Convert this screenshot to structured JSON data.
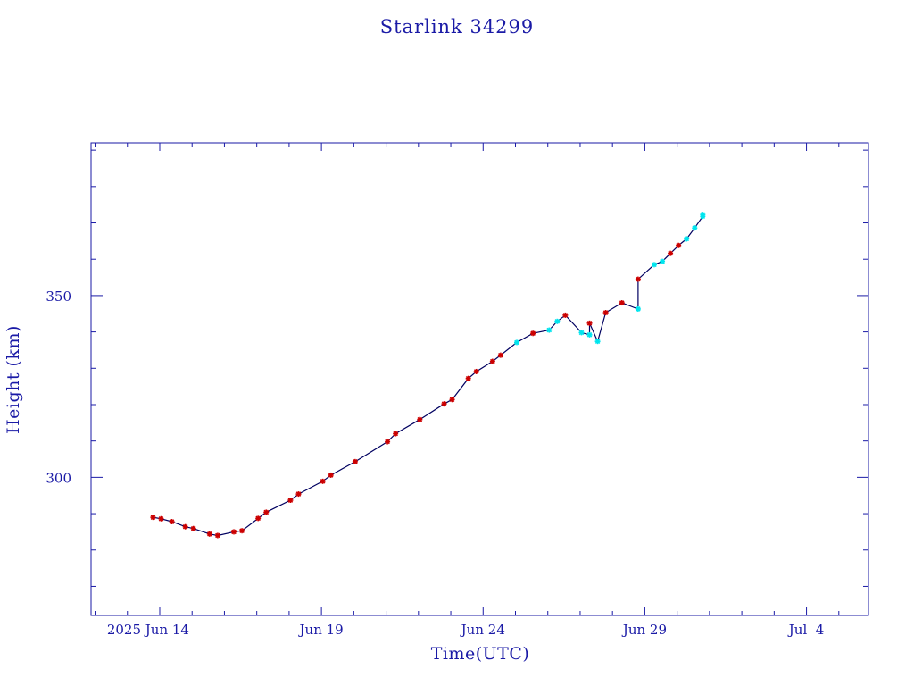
{
  "chart_data": {
    "type": "line",
    "title": "Starlink 34299",
    "xlabel": "Time(UTC)",
    "ylabel": "Height (km)",
    "x_tick_labels": [
      "2025 Jun 14",
      "Jun 19",
      "Jun 24",
      "Jun 29",
      "Jul  4"
    ],
    "x_tick_dates": [
      "2025-06-14",
      "2025-06-19",
      "2025-06-24",
      "2025-06-29",
      "2025-07-04"
    ],
    "y_tick_labels": [
      "300",
      "350"
    ],
    "y_tick_values": [
      300,
      350
    ],
    "xlim": [
      "2025-06-11 21:00",
      "2025-07-05 22:00"
    ],
    "ylim": [
      262,
      392
    ],
    "grid": false,
    "colors": {
      "frame": "#1a1aa6",
      "line": "#000060",
      "marker_a": "#cc0000",
      "marker_b": "#00e5ee"
    },
    "series": [
      {
        "marker": "red-star",
        "points": [
          [
            "2025-06-13 19:00",
            289.0
          ],
          [
            "2025-06-14 01:00",
            288.6
          ],
          [
            "2025-06-14 09:00",
            287.8
          ],
          [
            "2025-06-14 19:00",
            286.4
          ],
          [
            "2025-06-15 01:00",
            285.9
          ],
          [
            "2025-06-15 13:00",
            284.4
          ],
          [
            "2025-06-15 19:00",
            284.0
          ],
          [
            "2025-06-16 07:00",
            285.0
          ],
          [
            "2025-06-16 13:00",
            285.3
          ],
          [
            "2025-06-17 01:00",
            288.7
          ],
          [
            "2025-06-17 07:00",
            290.4
          ],
          [
            "2025-06-18 01:00",
            293.7
          ],
          [
            "2025-06-18 07:00",
            295.4
          ],
          [
            "2025-06-19 01:00",
            298.9
          ],
          [
            "2025-06-19 07:00",
            300.6
          ],
          [
            "2025-06-20 01:00",
            304.3
          ],
          [
            "2025-06-21 01:00",
            309.8
          ],
          [
            "2025-06-21 07:00",
            312.0
          ],
          [
            "2025-06-22 01:00",
            315.9
          ],
          [
            "2025-06-22 19:00",
            320.2
          ],
          [
            "2025-06-23 01:00",
            321.4
          ],
          [
            "2025-06-23 13:00",
            327.2
          ],
          [
            "2025-06-23 19:00",
            329.1
          ],
          [
            "2025-06-24 07:00",
            331.9
          ],
          [
            "2025-06-24 13:00",
            333.6
          ],
          [
            "2025-06-25 13:00",
            339.6
          ],
          [
            "2025-06-26 13:00",
            344.6
          ],
          [
            "2025-06-27 07:00",
            342.4
          ],
          [
            "2025-06-27 19:00",
            345.3
          ],
          [
            "2025-06-28 07:00",
            348.0
          ],
          [
            "2025-06-28 19:00",
            354.5
          ],
          [
            "2025-06-29 19:00",
            361.6
          ],
          [
            "2025-06-30 01:00",
            363.8
          ]
        ]
      },
      {
        "marker": "cyan-star",
        "points": [
          [
            "2025-06-25 01:00",
            337.1
          ],
          [
            "2025-06-26 01:00",
            340.5
          ],
          [
            "2025-06-26 07:00",
            342.9
          ],
          [
            "2025-06-27 01:00",
            339.8
          ],
          [
            "2025-06-27 07:00",
            339.2
          ],
          [
            "2025-06-27 13:00",
            337.4
          ],
          [
            "2025-06-28 19:00",
            346.3
          ],
          [
            "2025-06-29 07:00",
            358.5
          ],
          [
            "2025-06-29 13:00",
            359.4
          ],
          [
            "2025-06-30 07:00",
            365.6
          ],
          [
            "2025-06-30 13:00",
            368.6
          ],
          [
            "2025-06-30 19:00",
            371.8
          ],
          [
            "2025-06-30 19:00",
            372.3
          ]
        ]
      }
    ],
    "line_path": [
      [
        "2025-06-13 19:00",
        289.0
      ],
      [
        "2025-06-14 01:00",
        288.6
      ],
      [
        "2025-06-14 09:00",
        287.8
      ],
      [
        "2025-06-14 19:00",
        286.4
      ],
      [
        "2025-06-15 01:00",
        285.9
      ],
      [
        "2025-06-15 13:00",
        284.4
      ],
      [
        "2025-06-15 19:00",
        284.0
      ],
      [
        "2025-06-16 07:00",
        285.0
      ],
      [
        "2025-06-16 13:00",
        285.3
      ],
      [
        "2025-06-17 01:00",
        288.7
      ],
      [
        "2025-06-17 07:00",
        290.4
      ],
      [
        "2025-06-18 01:00",
        293.7
      ],
      [
        "2025-06-18 07:00",
        295.4
      ],
      [
        "2025-06-19 01:00",
        298.9
      ],
      [
        "2025-06-19 07:00",
        300.6
      ],
      [
        "2025-06-20 01:00",
        304.3
      ],
      [
        "2025-06-21 01:00",
        309.8
      ],
      [
        "2025-06-21 07:00",
        312.0
      ],
      [
        "2025-06-22 01:00",
        315.9
      ],
      [
        "2025-06-22 19:00",
        320.2
      ],
      [
        "2025-06-23 01:00",
        321.4
      ],
      [
        "2025-06-23 13:00",
        327.2
      ],
      [
        "2025-06-23 19:00",
        329.1
      ],
      [
        "2025-06-24 07:00",
        331.9
      ],
      [
        "2025-06-24 13:00",
        333.6
      ],
      [
        "2025-06-25 01:00",
        337.1
      ],
      [
        "2025-06-25 13:00",
        339.6
      ],
      [
        "2025-06-26 01:00",
        340.5
      ],
      [
        "2025-06-26 07:00",
        342.9
      ],
      [
        "2025-06-26 13:00",
        344.6
      ],
      [
        "2025-06-27 01:00",
        339.8
      ],
      [
        "2025-06-27 07:00",
        339.2
      ],
      [
        "2025-06-27 07:00",
        342.4
      ],
      [
        "2025-06-27 13:00",
        337.4
      ],
      [
        "2025-06-27 19:00",
        345.3
      ],
      [
        "2025-06-28 07:00",
        348.0
      ],
      [
        "2025-06-28 19:00",
        346.3
      ],
      [
        "2025-06-28 19:00",
        354.5
      ],
      [
        "2025-06-29 07:00",
        358.5
      ],
      [
        "2025-06-29 13:00",
        359.4
      ],
      [
        "2025-06-29 19:00",
        361.6
      ],
      [
        "2025-06-30 01:00",
        363.8
      ],
      [
        "2025-06-30 07:00",
        365.6
      ],
      [
        "2025-06-30 13:00",
        368.6
      ],
      [
        "2025-06-30 19:00",
        371.8
      ],
      [
        "2025-06-30 19:00",
        372.3
      ]
    ]
  }
}
